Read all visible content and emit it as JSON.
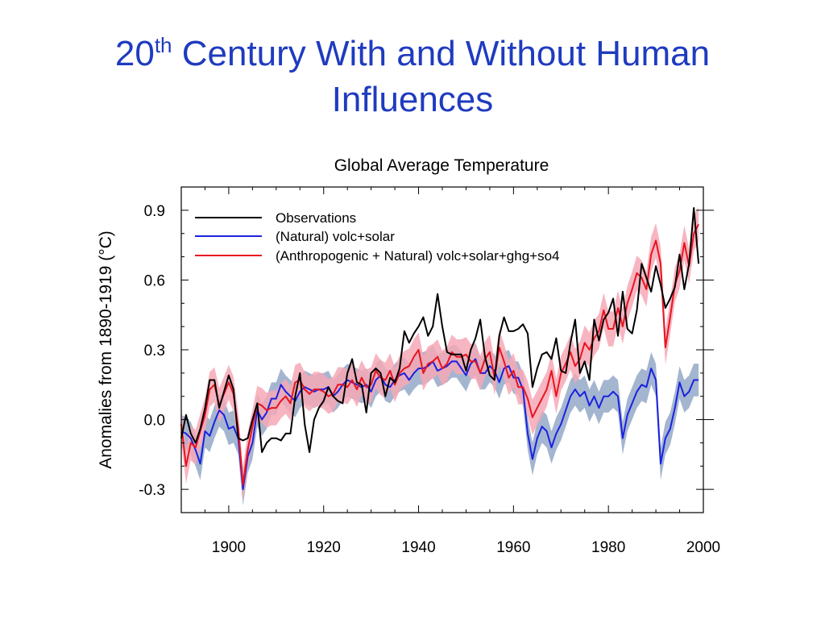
{
  "slide": {
    "title_main": "20",
    "title_sup": "th",
    "title_rest": " Century With and Without Human",
    "title_line2": "Influences"
  },
  "colors": {
    "title": "#1f3bbf",
    "observations": "#000000",
    "natural": "#1a22e0",
    "anthropogenic": "#e8141e",
    "natural_band": "#9fb1cd",
    "anthropogenic_band": "#f6a8b6"
  },
  "chart_data": {
    "type": "line",
    "title": "Global Average Temperature",
    "ylabel": "Anomalies from 1890-1919 (°C)",
    "xlabel": "",
    "xlim": [
      1890,
      2000
    ],
    "ylim": [
      -0.4,
      1.0
    ],
    "xticks": [
      1900,
      1920,
      1940,
      1960,
      1980,
      2000
    ],
    "xtick_labels": [
      "1900",
      "1920",
      "1940",
      "1960",
      "1980",
      "2000"
    ],
    "yticks": [
      -0.3,
      0.0,
      0.3,
      0.6,
      0.9
    ],
    "ytick_labels": [
      "-0.3",
      "0.0",
      "0.3",
      "0.6",
      "0.9"
    ],
    "grid": false,
    "legend_position": "top-left",
    "x": [
      1890,
      1891,
      1892,
      1893,
      1894,
      1895,
      1896,
      1897,
      1898,
      1899,
      1900,
      1901,
      1902,
      1903,
      1904,
      1905,
      1906,
      1907,
      1908,
      1909,
      1910,
      1911,
      1912,
      1913,
      1914,
      1915,
      1916,
      1917,
      1918,
      1919,
      1920,
      1921,
      1922,
      1923,
      1924,
      1925,
      1926,
      1927,
      1928,
      1929,
      1930,
      1931,
      1932,
      1933,
      1934,
      1935,
      1936,
      1937,
      1938,
      1939,
      1940,
      1941,
      1942,
      1943,
      1944,
      1945,
      1946,
      1947,
      1948,
      1949,
      1950,
      1951,
      1952,
      1953,
      1954,
      1955,
      1956,
      1957,
      1958,
      1959,
      1960,
      1961,
      1962,
      1963,
      1964,
      1965,
      1966,
      1967,
      1968,
      1969,
      1970,
      1971,
      1972,
      1973,
      1974,
      1975,
      1976,
      1977,
      1978,
      1979,
      1980,
      1981,
      1982,
      1983,
      1984,
      1985,
      1986,
      1987,
      1988,
      1989,
      1990,
      1991,
      1992,
      1993,
      1994,
      1995,
      1996,
      1997,
      1998,
      1999
    ],
    "series": [
      {
        "name": "Observations",
        "color": "#000000",
        "values": [
          -0.08,
          0.02,
          -0.06,
          -0.1,
          -0.04,
          0.05,
          0.17,
          0.17,
          0.05,
          0.12,
          0.19,
          0.13,
          -0.08,
          -0.09,
          -0.08,
          0.0,
          0.07,
          -0.14,
          -0.1,
          -0.08,
          -0.08,
          -0.09,
          -0.06,
          -0.06,
          0.1,
          0.2,
          -0.02,
          -0.14,
          0.0,
          0.05,
          0.08,
          0.14,
          0.1,
          0.08,
          0.07,
          0.2,
          0.26,
          0.16,
          0.15,
          0.03,
          0.2,
          0.22,
          0.2,
          0.1,
          0.18,
          0.16,
          0.22,
          0.38,
          0.33,
          0.37,
          0.4,
          0.44,
          0.36,
          0.4,
          0.54,
          0.4,
          0.29,
          0.28,
          0.28,
          0.28,
          0.21,
          0.3,
          0.35,
          0.43,
          0.27,
          0.19,
          0.17,
          0.36,
          0.44,
          0.38,
          0.38,
          0.39,
          0.41,
          0.37,
          0.14,
          0.22,
          0.28,
          0.29,
          0.26,
          0.35,
          0.21,
          0.2,
          0.33,
          0.43,
          0.2,
          0.25,
          0.17,
          0.43,
          0.34,
          0.43,
          0.46,
          0.52,
          0.36,
          0.55,
          0.39,
          0.37,
          0.47,
          0.67,
          0.61,
          0.55,
          0.66,
          0.58,
          0.48,
          0.52,
          0.57,
          0.71,
          0.56,
          0.67,
          0.91,
          0.67
        ]
      },
      {
        "name": "(Natural) volc+solar",
        "color": "#1a22e0",
        "values": [
          -0.05,
          -0.06,
          -0.08,
          -0.13,
          -0.19,
          -0.05,
          -0.07,
          -0.01,
          0.04,
          0.02,
          -0.04,
          -0.03,
          -0.08,
          -0.3,
          -0.16,
          -0.1,
          0.04,
          0.0,
          0.03,
          0.09,
          0.09,
          0.15,
          0.12,
          0.1,
          0.08,
          0.12,
          0.14,
          0.13,
          0.12,
          0.13,
          0.13,
          0.14,
          0.1,
          0.12,
          0.15,
          0.17,
          0.16,
          0.15,
          0.14,
          0.15,
          0.12,
          0.17,
          0.19,
          0.15,
          0.14,
          0.17,
          0.19,
          0.2,
          0.17,
          0.2,
          0.22,
          0.22,
          0.23,
          0.25,
          0.21,
          0.22,
          0.23,
          0.25,
          0.25,
          0.22,
          0.19,
          0.24,
          0.26,
          0.2,
          0.2,
          0.23,
          0.21,
          0.16,
          0.22,
          0.23,
          0.18,
          0.18,
          0.13,
          -0.06,
          -0.17,
          -0.08,
          -0.03,
          -0.05,
          -0.12,
          -0.06,
          -0.02,
          0.04,
          0.1,
          0.13,
          0.1,
          0.12,
          0.06,
          0.1,
          0.05,
          0.1,
          0.1,
          0.12,
          0.1,
          -0.08,
          0.02,
          0.07,
          0.12,
          0.15,
          0.14,
          0.22,
          0.17,
          -0.19,
          -0.08,
          -0.04,
          0.05,
          0.16,
          0.1,
          0.12,
          0.17,
          0.17
        ]
      },
      {
        "name": "(Anthropogenic + Natural) volc+solar+ghg+so4",
        "color": "#e8141e",
        "values": [
          -0.02,
          -0.2,
          -0.1,
          -0.12,
          -0.05,
          0.02,
          0.13,
          0.15,
          0.06,
          0.11,
          0.16,
          0.11,
          -0.04,
          -0.28,
          -0.13,
          -0.03,
          0.07,
          0.06,
          0.04,
          0.05,
          0.05,
          0.08,
          0.1,
          0.07,
          0.16,
          0.17,
          0.13,
          0.11,
          0.13,
          0.13,
          0.12,
          0.1,
          0.11,
          0.15,
          0.15,
          0.14,
          0.17,
          0.13,
          0.18,
          0.14,
          0.15,
          0.21,
          0.18,
          0.17,
          0.21,
          0.15,
          0.2,
          0.22,
          0.23,
          0.27,
          0.3,
          0.2,
          0.24,
          0.25,
          0.27,
          0.22,
          0.24,
          0.29,
          0.27,
          0.27,
          0.28,
          0.25,
          0.25,
          0.2,
          0.26,
          0.29,
          0.18,
          0.31,
          0.25,
          0.18,
          0.21,
          0.14,
          0.14,
          0.09,
          0.01,
          0.05,
          0.09,
          0.13,
          0.21,
          0.1,
          0.2,
          0.24,
          0.29,
          0.23,
          0.26,
          0.33,
          0.3,
          0.35,
          0.38,
          0.47,
          0.39,
          0.39,
          0.48,
          0.4,
          0.5,
          0.56,
          0.63,
          0.61,
          0.56,
          0.71,
          0.77,
          0.67,
          0.31,
          0.44,
          0.58,
          0.64,
          0.76,
          0.66,
          0.8,
          0.84
        ]
      }
    ]
  }
}
